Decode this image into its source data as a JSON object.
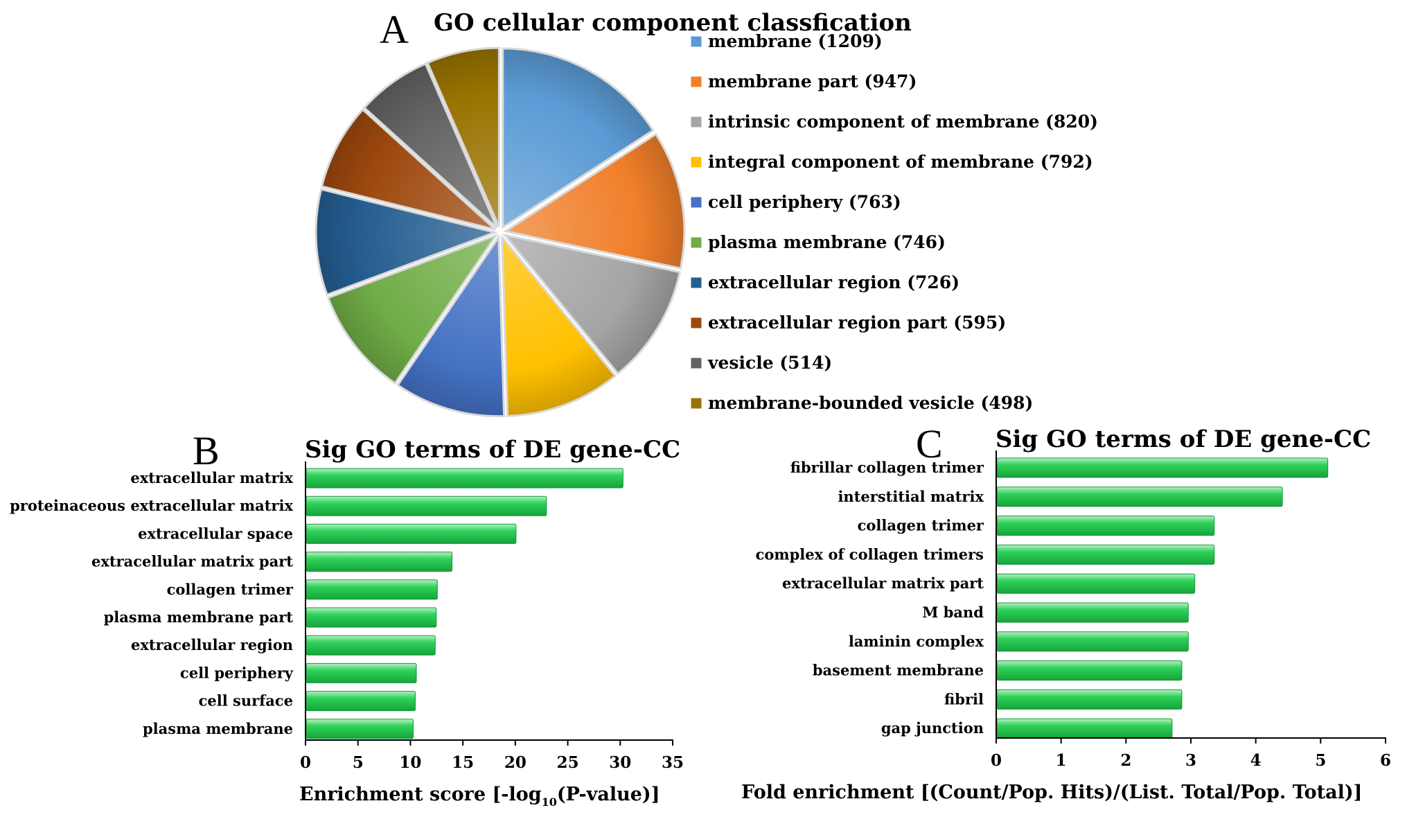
{
  "chart_data": [
    {
      "panel": "A",
      "type": "pie",
      "title": "GO cellular component classfication",
      "labels": [
        "membrane",
        "membrane part",
        "intrinsic component of membrane",
        "integral component of membrane",
        "cell periphery",
        "plasma membrane",
        "extracellular region",
        "extracellular region part",
        "vesicle",
        "membrane-bounded vesicle"
      ],
      "legend_labels": [
        "membrane (1209)",
        "membrane part (947)",
        "intrinsic component of membrane (820)",
        "integral component of membrane (792)",
        "cell periphery (763)",
        "plasma membrane (746)",
        "extracellular region (726)",
        "extracellular region part (595)",
        "vesicle (514)",
        "membrane-bounded vesicle (498)"
      ],
      "values": [
        1209,
        947,
        820,
        792,
        763,
        746,
        726,
        595,
        514,
        498
      ],
      "colors": [
        "#5b9bd5",
        "#f07f2a",
        "#a5a5a5",
        "#ffc000",
        "#4472c4",
        "#70ad47",
        "#255e91",
        "#9e480e",
        "#636363",
        "#997300"
      ],
      "legend_position": "right"
    },
    {
      "panel": "B",
      "type": "bar",
      "orientation": "horizontal",
      "title": "Sig GO terms of DE gene-CC",
      "categories": [
        "extracellular matrix",
        "proteinaceous extracellular matrix",
        "extracellular space",
        "extracellular matrix part",
        "collagen trimer",
        "plasma membrane part",
        "extracellular region",
        "cell periphery",
        "cell surface",
        "plasma membrane"
      ],
      "values": [
        30.2,
        22.9,
        20.0,
        13.9,
        12.5,
        12.4,
        12.3,
        10.5,
        10.4,
        10.2
      ],
      "xlabel_main": "Enrichment score  [-log",
      "xlabel_sub": "10",
      "xlabel_tail": "(P-value)]",
      "xlim": [
        0,
        35
      ],
      "xticks": [
        0,
        5,
        10,
        15,
        20,
        25,
        30,
        35
      ],
      "bar_color": "#2ecc52"
    },
    {
      "panel": "C",
      "type": "bar",
      "orientation": "horizontal",
      "title": "Sig GO terms of DE gene-CC",
      "categories": [
        "fibrillar collagen trimer",
        "interstitial matrix",
        "collagen trimer",
        "complex of collagen trimers",
        "extracellular matrix part",
        "M band",
        "laminin complex",
        "basement membrane",
        "fibril",
        "gap junction"
      ],
      "values": [
        5.1,
        4.4,
        3.35,
        3.35,
        3.05,
        2.95,
        2.95,
        2.85,
        2.85,
        2.7
      ],
      "xlabel": "Fold enrichment [(Count/Pop. Hits)/(List. Total/Pop. Total)]",
      "xlim": [
        0,
        6
      ],
      "xticks": [
        0,
        1,
        2,
        3,
        4,
        5,
        6
      ],
      "bar_color": "#2ecc52"
    }
  ]
}
